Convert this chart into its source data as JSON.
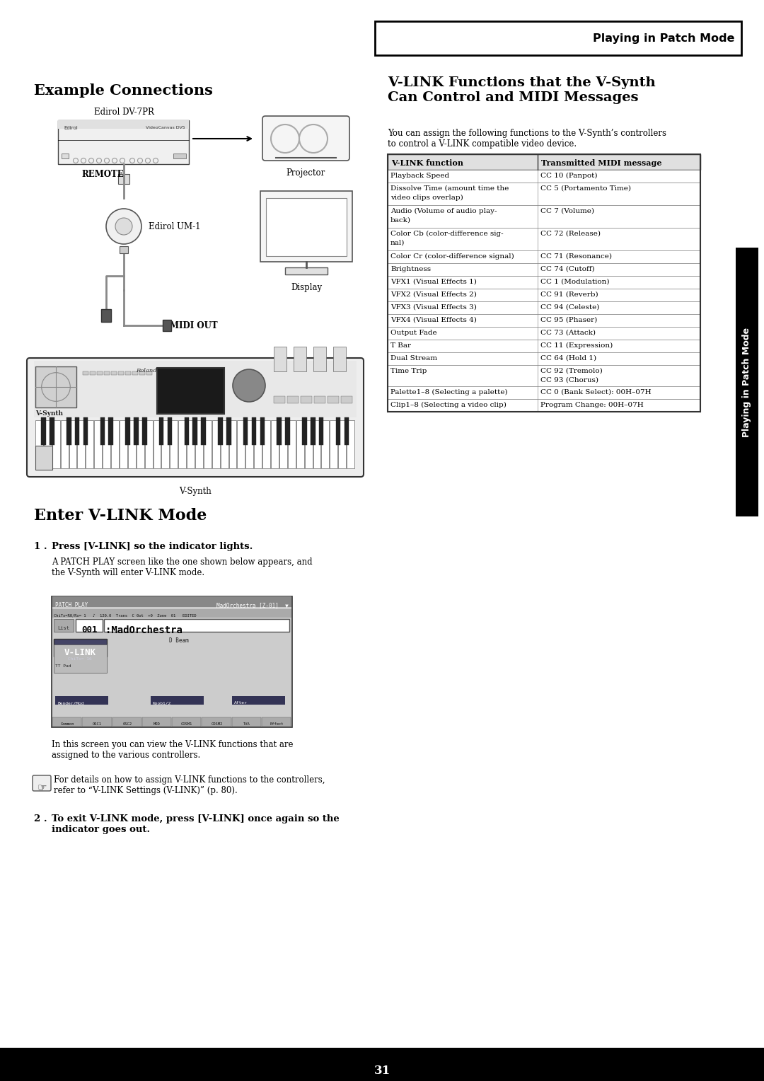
{
  "page_title": "Playing in Patch Mode",
  "bg_color": "#ffffff",
  "section1_title": "Example Connections",
  "section2_title": "Enter V-LINK Mode",
  "section3_title": "V-LINK Functions that the V-Synth\nCan Control and MIDI Messages",
  "section3_subtitle": "You can assign the following functions to the V-Synth’s controllers\nto control a V-LINK compatible video device.",
  "sidebar_text": "Playing in Patch Mode",
  "step1_label": "1 .",
  "step1_bold": "Press [V-LINK] so the indicator lights.",
  "step1_text": "A PATCH PLAY screen like the one shown below appears, and\nthe V-Synth will enter V-LINK mode.",
  "note_text": "In this screen you can view the V-LINK functions that are\nassigned to the various controllers.",
  "note2_text": "For details on how to assign V-LINK functions to the controllers,\nrefer to “V-LINK Settings (V-LINK)” (p. 80).",
  "step2_label": "2 .",
  "step2_bold": "To exit V-LINK mode, press [V-LINK] once again so the\nindicator goes out.",
  "page_num": "31",
  "table_header": [
    "V-LINK function",
    "Transmitted MIDI message"
  ],
  "table_rows": [
    [
      "Playback Speed",
      "CC 10 (Panpot)"
    ],
    [
      "Dissolve Time (amount time the\nvideo clips overlap)",
      "CC 5 (Portamento Time)"
    ],
    [
      "Audio (Volume of audio play-\nback)",
      "CC 7 (Volume)"
    ],
    [
      "Color Cb (color-difference sig-\nnal)",
      "CC 72 (Release)"
    ],
    [
      "Color Cr (color-difference signal)",
      "CC 71 (Resonance)"
    ],
    [
      "Brightness",
      "CC 74 (Cutoff)"
    ],
    [
      "VFX1 (Visual Effects 1)",
      "CC 1 (Modulation)"
    ],
    [
      "VFX2 (Visual Effects 2)",
      "CC 91 (Reverb)"
    ],
    [
      "VFX3 (Visual Effects 3)",
      "CC 94 (Celeste)"
    ],
    [
      "VFX4 (Visual Effects 4)",
      "CC 95 (Phaser)"
    ],
    [
      "Output Fade",
      "CC 73 (Attack)"
    ],
    [
      "T Bar",
      "CC 11 (Expression)"
    ],
    [
      "Dual Stream",
      "CC 64 (Hold 1)"
    ],
    [
      "Time Trip",
      "CC 92 (Tremolo)\nCC 93 (Chorus)"
    ],
    [
      "Palette1–8 (Selecting a palette)",
      "CC 0 (Bank Select): 00H–07H"
    ],
    [
      "Clip1–8 (Selecting a video clip)",
      "Program Change: 00H–07H"
    ]
  ],
  "labels": {
    "edirol_dv7pr": "Edirol DV-7PR",
    "projector": "Projector",
    "edirol_um1": "Edirol UM-1",
    "display": "Display",
    "midi_out": "MIDI OUT",
    "remote": "REMOTE",
    "v_synth": "V-Synth"
  }
}
